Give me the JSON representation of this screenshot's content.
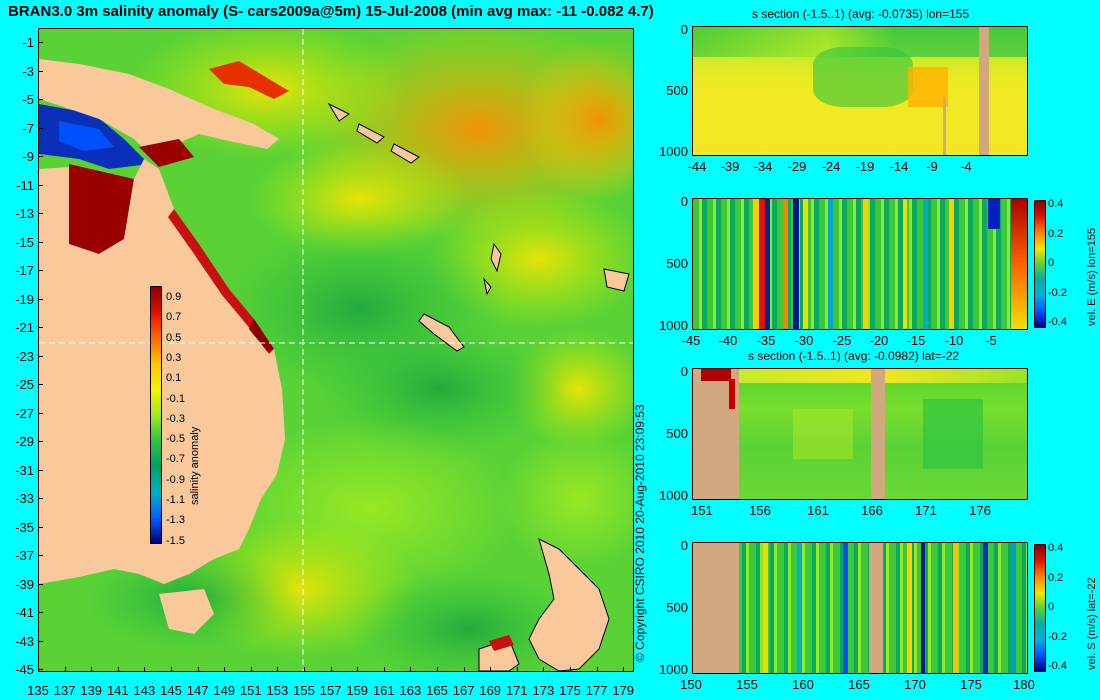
{
  "title": "BRAN3.0 3m salinity anomaly (S- cars2009a@5m) 15-Jul-2008 (min avg max: -11 -0.082 4.7)",
  "copyright": "© Copyright CSIRO 2010    20-Aug-2010 23:09:53",
  "map": {
    "lat_ticks": [
      "-1",
      "-3",
      "-5",
      "-7",
      "-9",
      "-11",
      "-13",
      "-15",
      "-17",
      "-19",
      "-21",
      "-23",
      "-25",
      "-27",
      "-29",
      "-31",
      "-33",
      "-35",
      "-37",
      "-39",
      "-41",
      "-43",
      "-45"
    ],
    "lon_ticks": [
      "135",
      "137",
      "139",
      "141",
      "143",
      "145",
      "147",
      "149",
      "151",
      "153",
      "155",
      "157",
      "159",
      "161",
      "163",
      "165",
      "167",
      "169",
      "171",
      "173",
      "175",
      "177",
      "179"
    ],
    "colorbar": {
      "label": "salinity anomaly",
      "ticks": [
        "0.9",
        "0.7",
        "0.5",
        "0.3",
        "0.1",
        "-0.1",
        "-0.3",
        "-0.5",
        "-0.7",
        "-0.9",
        "-1.1",
        "-1.3",
        "-1.5"
      ]
    },
    "land_color": "#f9c99c",
    "section_lines": {
      "lon": 155,
      "lat": -22
    }
  },
  "panels": [
    {
      "title": "s section (-1.5..1) (avg: -0.0735) lon=155",
      "y_ticks": [
        "0",
        "500",
        "1000"
      ],
      "x_ticks": [
        "-44",
        "-39",
        "-34",
        "-29",
        "-24",
        "-19",
        "-14",
        "-9",
        "-4"
      ],
      "cbar_label": "",
      "cbar_ticks": []
    },
    {
      "title": "",
      "y_ticks": [
        "0",
        "500",
        "1000"
      ],
      "x_ticks": [
        "-45",
        "-40",
        "-35",
        "-30",
        "-25",
        "-20",
        "-15",
        "-10",
        "-5"
      ],
      "cbar_label": "vel. E (m/s) lon=155",
      "cbar_ticks": [
        "0.4",
        "0.2",
        "0",
        "-0.2",
        "-0.4"
      ]
    },
    {
      "title": "s section (-1.5..1) (avg: -0.0982) lat=-22",
      "y_ticks": [
        "0",
        "500",
        "1000"
      ],
      "x_ticks": [
        "151",
        "156",
        "161",
        "166",
        "171",
        "176"
      ],
      "cbar_label": "",
      "cbar_ticks": []
    },
    {
      "title": "",
      "y_ticks": [
        "0",
        "500",
        "1000"
      ],
      "x_ticks": [
        "150",
        "155",
        "160",
        "165",
        "170",
        "175",
        "180"
      ],
      "cbar_label": "vel. S (m/s) lat=-22",
      "cbar_ticks": [
        "0.4",
        "0.2",
        "0",
        "-0.2",
        "-0.4"
      ]
    }
  ]
}
